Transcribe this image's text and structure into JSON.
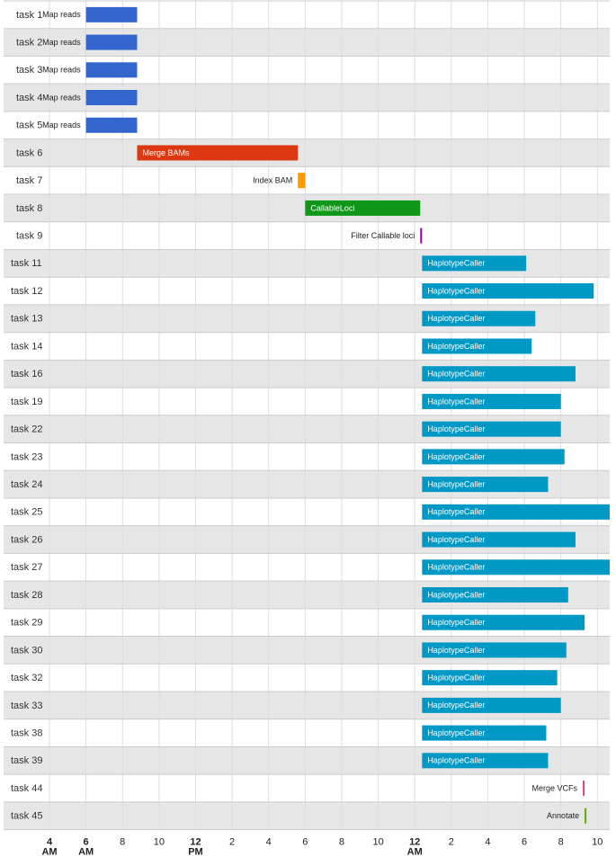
{
  "chart_data": {
    "type": "gantt",
    "x_axis": {
      "unit": "hours since 12 AM of day 1",
      "range": [
        3,
        39
      ],
      "ticks": [
        {
          "hour": 4,
          "label": "4",
          "sublabel": "AM",
          "bold": true
        },
        {
          "hour": 6,
          "label": "6",
          "sublabel": "AM",
          "bold": true
        },
        {
          "hour": 8,
          "label": "8",
          "sublabel": "",
          "bold": false
        },
        {
          "hour": 10,
          "label": "10",
          "sublabel": "",
          "bold": false
        },
        {
          "hour": 12,
          "label": "12",
          "sublabel": "PM",
          "bold": true
        },
        {
          "hour": 14,
          "label": "2",
          "sublabel": "",
          "bold": false
        },
        {
          "hour": 16,
          "label": "4",
          "sublabel": "",
          "bold": false
        },
        {
          "hour": 18,
          "label": "6",
          "sublabel": "",
          "bold": false
        },
        {
          "hour": 20,
          "label": "8",
          "sublabel": "",
          "bold": false
        },
        {
          "hour": 22,
          "label": "10",
          "sublabel": "",
          "bold": false
        },
        {
          "hour": 24,
          "label": "12",
          "sublabel": "AM",
          "bold": true
        },
        {
          "hour": 26,
          "label": "2",
          "sublabel": "",
          "bold": false
        },
        {
          "hour": 28,
          "label": "4",
          "sublabel": "",
          "bold": false
        },
        {
          "hour": 30,
          "label": "6",
          "sublabel": "",
          "bold": false
        },
        {
          "hour": 32,
          "label": "8",
          "sublabel": "",
          "bold": false
        },
        {
          "hour": 34,
          "label": "10",
          "sublabel": "",
          "bold": false
        }
      ]
    },
    "colors": {
      "Map reads": "#3366cc",
      "Merge BAMs": "#dc3912",
      "Index BAM": "#ff9900",
      "CallableLoci": "#109618",
      "Filter Callable loci": "#990099",
      "HaplotypeCaller": "#0099c6",
      "Merge VCFs": "#dd4477",
      "Annotate": "#66aa00",
      "stripe": "#e6e6e6",
      "grid": "#dddddd"
    },
    "tasks": [
      {
        "row": "task 1",
        "label": "Map reads",
        "start": 6.0,
        "end": 8.8
      },
      {
        "row": "task 2",
        "label": "Map reads",
        "start": 6.0,
        "end": 8.8
      },
      {
        "row": "task 3",
        "label": "Map reads",
        "start": 6.0,
        "end": 8.8
      },
      {
        "row": "task 4",
        "label": "Map reads",
        "start": 6.0,
        "end": 8.8
      },
      {
        "row": "task 5",
        "label": "Map reads",
        "start": 6.0,
        "end": 8.8
      },
      {
        "row": "task 6",
        "label": "Merge BAMs",
        "start": 8.8,
        "end": 17.6
      },
      {
        "row": "task 7",
        "label": "Index BAM",
        "start": 17.6,
        "end": 18.0
      },
      {
        "row": "task 8",
        "label": "CallableLoci",
        "start": 18.0,
        "end": 24.3
      },
      {
        "row": "task 9",
        "label": "Filter Callable loci",
        "start": 24.3,
        "end": 24.4
      },
      {
        "row": "task 11",
        "label": "HaplotypeCaller",
        "start": 24.4,
        "end": 30.1
      },
      {
        "row": "task 12",
        "label": "HaplotypeCaller",
        "start": 24.4,
        "end": 33.8
      },
      {
        "row": "task 13",
        "label": "HaplotypeCaller",
        "start": 24.4,
        "end": 30.6
      },
      {
        "row": "task 14",
        "label": "HaplotypeCaller",
        "start": 24.4,
        "end": 30.4
      },
      {
        "row": "task 16",
        "label": "HaplotypeCaller",
        "start": 24.4,
        "end": 32.8
      },
      {
        "row": "task 19",
        "label": "HaplotypeCaller",
        "start": 24.4,
        "end": 32.0
      },
      {
        "row": "task 22",
        "label": "HaplotypeCaller",
        "start": 24.4,
        "end": 32.0
      },
      {
        "row": "task 23",
        "label": "HaplotypeCaller",
        "start": 24.4,
        "end": 32.2
      },
      {
        "row": "task 24",
        "label": "HaplotypeCaller",
        "start": 24.4,
        "end": 31.3
      },
      {
        "row": "task 25",
        "label": "HaplotypeCaller",
        "start": 24.4,
        "end": 34.8
      },
      {
        "row": "task 26",
        "label": "HaplotypeCaller",
        "start": 24.4,
        "end": 32.8
      },
      {
        "row": "task 27",
        "label": "HaplotypeCaller",
        "start": 24.4,
        "end": 34.7
      },
      {
        "row": "task 28",
        "label": "HaplotypeCaller",
        "start": 24.4,
        "end": 32.4
      },
      {
        "row": "task 29",
        "label": "HaplotypeCaller",
        "start": 24.4,
        "end": 33.3
      },
      {
        "row": "task 30",
        "label": "HaplotypeCaller",
        "start": 24.4,
        "end": 32.3
      },
      {
        "row": "task 32",
        "label": "HaplotypeCaller",
        "start": 24.4,
        "end": 31.8
      },
      {
        "row": "task 33",
        "label": "HaplotypeCaller",
        "start": 24.4,
        "end": 32.0
      },
      {
        "row": "task 38",
        "label": "HaplotypeCaller",
        "start": 24.4,
        "end": 31.2
      },
      {
        "row": "task 39",
        "label": "HaplotypeCaller",
        "start": 24.4,
        "end": 31.3
      },
      {
        "row": "task 44",
        "label": "Merge VCFs",
        "start": 33.2,
        "end": 33.3
      },
      {
        "row": "task 45",
        "label": "Annotate",
        "start": 33.3,
        "end": 33.4
      }
    ]
  }
}
